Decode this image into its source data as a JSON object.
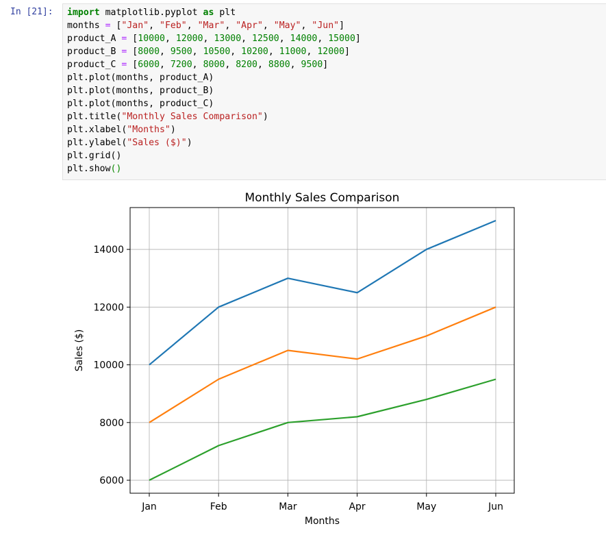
{
  "cell": {
    "prompt": "In [21]:",
    "lines": [
      "import matplotlib.pyplot as plt",
      "months = [\"Jan\", \"Feb\", \"Mar\", \"Apr\", \"May\", \"Jun\"]",
      "product_A = [10000, 12000, 13000, 12500, 14000, 15000]",
      "product_B = [8000, 9500, 10500, 10200, 11000, 12000]",
      "product_C = [6000, 7200, 8000, 8200, 8800, 9500]",
      "plt.plot(months, product_A)",
      "plt.plot(months, product_B)",
      "plt.plot(months, product_C)",
      "plt.title(\"Monthly Sales Comparison\")",
      "plt.xlabel(\"Months\")",
      "plt.ylabel(\"Sales ($)\")",
      "plt.grid()",
      "plt.show()"
    ]
  },
  "chart_data": {
    "type": "line",
    "title": "Monthly Sales Comparison",
    "xlabel": "Months",
    "ylabel": "Sales ($)",
    "categories": [
      "Jan",
      "Feb",
      "Mar",
      "Apr",
      "May",
      "Jun"
    ],
    "series": [
      {
        "values": [
          10000,
          12000,
          13000,
          12500,
          14000,
          15000
        ],
        "color": "#1f77b4"
      },
      {
        "values": [
          8000,
          9500,
          10500,
          10200,
          11000,
          12000
        ],
        "color": "#ff7f0e"
      },
      {
        "values": [
          6000,
          7200,
          8000,
          8200,
          8800,
          9500
        ],
        "color": "#2ca02c"
      }
    ],
    "yticks": [
      6000,
      8000,
      10000,
      12000,
      14000
    ],
    "ylim": [
      5550,
      15450
    ],
    "grid": true
  }
}
